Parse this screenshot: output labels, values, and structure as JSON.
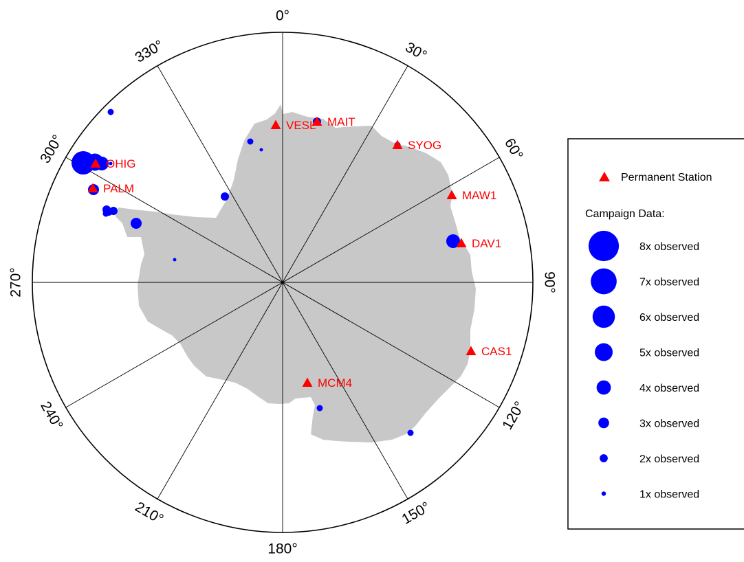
{
  "map": {
    "meridian_labels": [
      {
        "deg": 0,
        "text": "0"
      },
      {
        "deg": 30,
        "text": "30"
      },
      {
        "deg": 60,
        "text": "60"
      },
      {
        "deg": 90,
        "text": "90"
      },
      {
        "deg": 120,
        "text": "120"
      },
      {
        "deg": 150,
        "text": "150"
      },
      {
        "deg": 180,
        "text": "180"
      },
      {
        "deg": 210,
        "text": "210"
      },
      {
        "deg": 240,
        "text": "240"
      },
      {
        "deg": 270,
        "text": "270"
      },
      {
        "deg": 300,
        "text": "300"
      },
      {
        "deg": 330,
        "text": "330"
      }
    ],
    "degree_symbol": "°",
    "permanent_stations": [
      {
        "name": "VESL"
      },
      {
        "name": "MAIT"
      },
      {
        "name": "SYOG"
      },
      {
        "name": "OHIG"
      },
      {
        "name": "PALM"
      },
      {
        "name": "MAW1"
      },
      {
        "name": "DAV1"
      },
      {
        "name": "CAS1"
      },
      {
        "name": "MCM4"
      }
    ],
    "campaign_sites": [
      {
        "observed": 8
      },
      {
        "observed": 6
      },
      {
        "observed": 5
      },
      {
        "observed": 4
      },
      {
        "observed": 3
      },
      {
        "observed": 3
      },
      {
        "observed": 3
      },
      {
        "observed": 4
      },
      {
        "observed": 3
      },
      {
        "observed": 2
      },
      {
        "observed": 2
      },
      {
        "observed": 2
      },
      {
        "observed": 3
      },
      {
        "observed": 2
      },
      {
        "observed": 2
      },
      {
        "observed": 1
      },
      {
        "observed": 1
      },
      {
        "observed": 1
      },
      {
        "observed": 2
      },
      {
        "observed": 5
      },
      {
        "observed": 2
      },
      {
        "observed": 2
      }
    ],
    "colors": {
      "land": "#c8c8c8",
      "station": "#ff0000",
      "campaign": "#0000ff",
      "grid": "#000000"
    }
  },
  "legend": {
    "permanent_label": "Permanent Station",
    "campaign_title": "Campaign Data:",
    "items": [
      {
        "observed": 8,
        "label": "8x observed"
      },
      {
        "observed": 7,
        "label": "7x observed"
      },
      {
        "observed": 6,
        "label": "6x observed"
      },
      {
        "observed": 5,
        "label": "5x observed"
      },
      {
        "observed": 4,
        "label": "4x observed"
      },
      {
        "observed": 3,
        "label": "3x observed"
      },
      {
        "observed": 2,
        "label": "2x observed"
      },
      {
        "observed": 1,
        "label": "1x observed"
      }
    ]
  }
}
